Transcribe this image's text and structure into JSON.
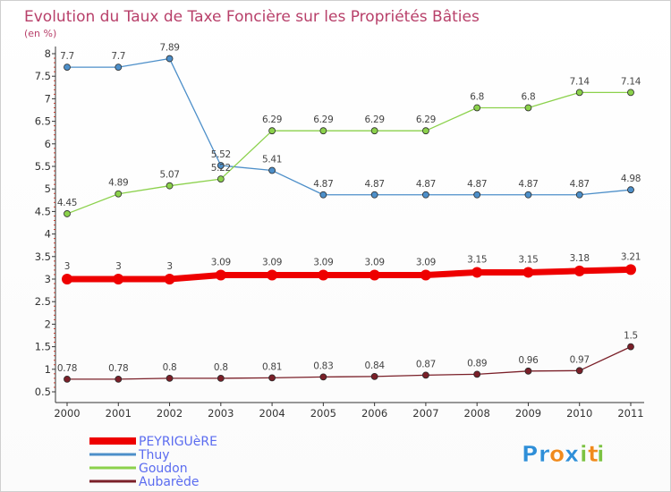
{
  "chart_data": {
    "type": "line",
    "title": "Evolution du Taux de Taxe Foncière sur les Propriétés Bâties",
    "unit_label": "(en %)",
    "x": [
      "2000",
      "2001",
      "2002",
      "2003",
      "2004",
      "2005",
      "2006",
      "2007",
      "2008",
      "2009",
      "2010",
      "2011"
    ],
    "ylim": [
      0.5,
      8
    ],
    "y_ticks": [
      "0.5",
      "1",
      "1.5",
      "2",
      "2.5",
      "3",
      "3.5",
      "4",
      "4.5",
      "5",
      "5.5",
      "6",
      "6.5",
      "7",
      "7.5",
      "8"
    ],
    "grid": false,
    "legend_position": "bottom-left",
    "series": [
      {
        "name": "Thuy",
        "color": "#4d8fc9",
        "values": [
          7.7,
          7.7,
          7.89,
          5.52,
          5.41,
          4.87,
          4.87,
          4.87,
          4.87,
          4.87,
          4.87,
          4.98
        ],
        "labels": [
          "7.7",
          "7.7",
          "7.89",
          "5.52",
          "5.41",
          "4.87",
          "4.87",
          "4.87",
          "4.87",
          "4.87",
          "4.87",
          "4.98"
        ]
      },
      {
        "name": "Goudon",
        "color": "#8bd14b",
        "values": [
          4.45,
          4.89,
          5.07,
          5.22,
          6.29,
          6.29,
          6.29,
          6.29,
          6.8,
          6.8,
          7.14,
          7.14
        ],
        "labels": [
          "4.45",
          "4.89",
          "5.07",
          "5.22",
          "6.29",
          "6.29",
          "6.29",
          "6.29",
          "6.8",
          "6.8",
          "7.14",
          "7.14"
        ]
      },
      {
        "name": "PEYRIGUèRE",
        "color": "#ee0000",
        "values": [
          3,
          3,
          3,
          3.09,
          3.09,
          3.09,
          3.09,
          3.09,
          3.15,
          3.15,
          3.18,
          3.21
        ],
        "labels": [
          "3",
          "3",
          "3",
          "3.09",
          "3.09",
          "3.09",
          "3.09",
          "3.09",
          "3.15",
          "3.15",
          "3.18",
          "3.21"
        ]
      },
      {
        "name": "Aubarède",
        "color": "#7a1f28",
        "values": [
          0.78,
          0.78,
          0.8,
          0.8,
          0.81,
          0.83,
          0.84,
          0.87,
          0.89,
          0.96,
          0.97,
          1.5
        ],
        "labels": [
          "0.78",
          "0.78",
          "0.8",
          "0.8",
          "0.81",
          "0.83",
          "0.84",
          "0.87",
          "0.89",
          "0.96",
          "0.97",
          "1.5"
        ]
      }
    ],
    "legend": [
      {
        "name": "PEYRIGUèRE",
        "color": "#ee0000",
        "text_color": "#5b6cf0"
      },
      {
        "name": "Thuy",
        "color": "#4d8fc9",
        "text_color": "#5b6cf0"
      },
      {
        "name": "Goudon",
        "color": "#8bd14b",
        "text_color": "#5b6cf0"
      },
      {
        "name": "Aubarède",
        "color": "#7a1f28",
        "text_color": "#5b6cf0"
      }
    ]
  },
  "branding": {
    "logo_text": "Proxiti",
    "logo_letters": [
      "P",
      "r",
      "o",
      "x",
      "i",
      "t",
      "i"
    ],
    "logo_colors": [
      "#2f8fd8",
      "#2f8fd8",
      "#f08a1c",
      "#2f8fd8",
      "#7cc242",
      "#f08a1c",
      "#7cc242"
    ]
  }
}
